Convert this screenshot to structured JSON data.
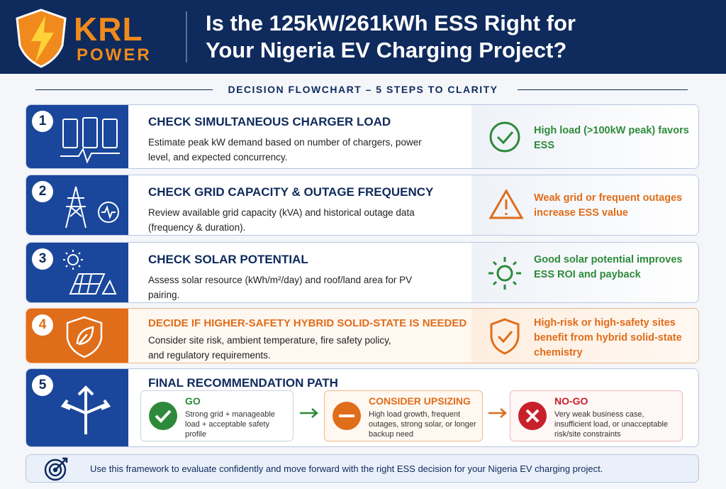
{
  "header": {
    "logo_top": "KRL",
    "logo_bottom": "POWER",
    "title_lines": [
      "Is the 125kW/261kWh ESS Right for",
      "Your Nigeria EV Charging Project?"
    ]
  },
  "subtitle": "DECISION FLOWCHART – 5 STEPS TO CLARITY",
  "steps": [
    {
      "number": "1",
      "title": "CHECK SIMULTANEOUS CHARGER LOAD",
      "description": "Estimate peak kW demand based on number of chargers, power level, and expected concurrency.",
      "outcome": "High load (>100kW peak) favors ESS"
    },
    {
      "number": "2",
      "title": "CHECK GRID CAPACITY & OUTAGE FREQUENCY",
      "description": "Review available grid capacity (kVA) and historical outage data (frequency & duration).",
      "outcome": "Weak grid or frequent outages increase ESS value"
    },
    {
      "number": "3",
      "title": "CHECK SOLAR POTENTIAL",
      "description": "Assess solar resource (kWh/m²/day) and roof/land area for PV pairing.",
      "outcome": "Good solar potential improves ESS ROI and payback"
    },
    {
      "number": "4",
      "title": "DECIDE IF HIGHER-SAFETY HYBRID SOLID-STATE IS NEEDED",
      "description": "Consider site risk, ambient temperature, fire safety policy, and regulatory requirements.",
      "outcome": "High-risk or high-safety sites benefit from hybrid solid-state chemistry"
    }
  ],
  "final": {
    "number": "5",
    "title": "FINAL RECOMMENDATION PATH",
    "options": [
      {
        "title": "GO",
        "text": "Strong grid + manageable load + acceptable safety profile"
      },
      {
        "title": "CONSIDER UPSIZING",
        "text": "High load growth, frequent outages, strong solar, or longer backup need"
      },
      {
        "title": "NO-GO",
        "text": "Very weak business case, insufficient load, or unacceptable risk/site constraints"
      }
    ]
  },
  "footer": {
    "text": "Use this framework to evaluate confidently and move forward with the right ESS decision for your Nigeria EV charging project."
  }
}
